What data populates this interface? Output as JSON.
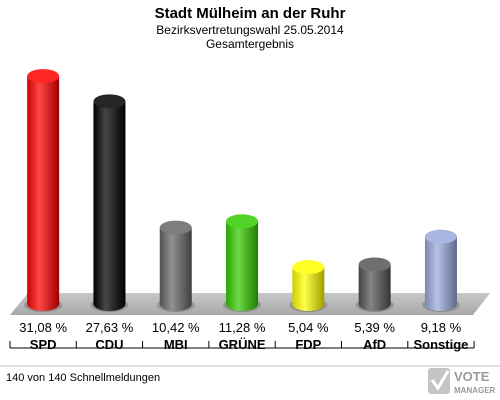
{
  "chart_data": {
    "type": "bar",
    "title": "Stadt Mülheim an der Ruhr",
    "subtitle": "Bezirksvertretungswahl 25.05.2014",
    "subtitle2": "Gesamtergebnis",
    "categories": [
      "SPD",
      "CDU",
      "MBI",
      "GRÜNE",
      "FDP",
      "AfD",
      "Sonstige"
    ],
    "values": [
      31.08,
      27.63,
      10.42,
      11.28,
      5.04,
      5.39,
      9.18
    ],
    "value_labels": [
      "31,08 %",
      "27,63 %",
      "10,42 %",
      "11,28 %",
      "5,04 %",
      "5,39 %",
      "9,18 %"
    ],
    "colors": [
      "#ff0000",
      "#000000",
      "#666666",
      "#33cc00",
      "#ffff00",
      "#555555",
      "#99aadd"
    ],
    "ylim": [
      0,
      33
    ]
  },
  "footer": "140 von 140 Schnellmeldungen",
  "logo": {
    "line1": "VOTE",
    "line2": "MANAGER",
    "icon": "ballot-check-icon"
  }
}
